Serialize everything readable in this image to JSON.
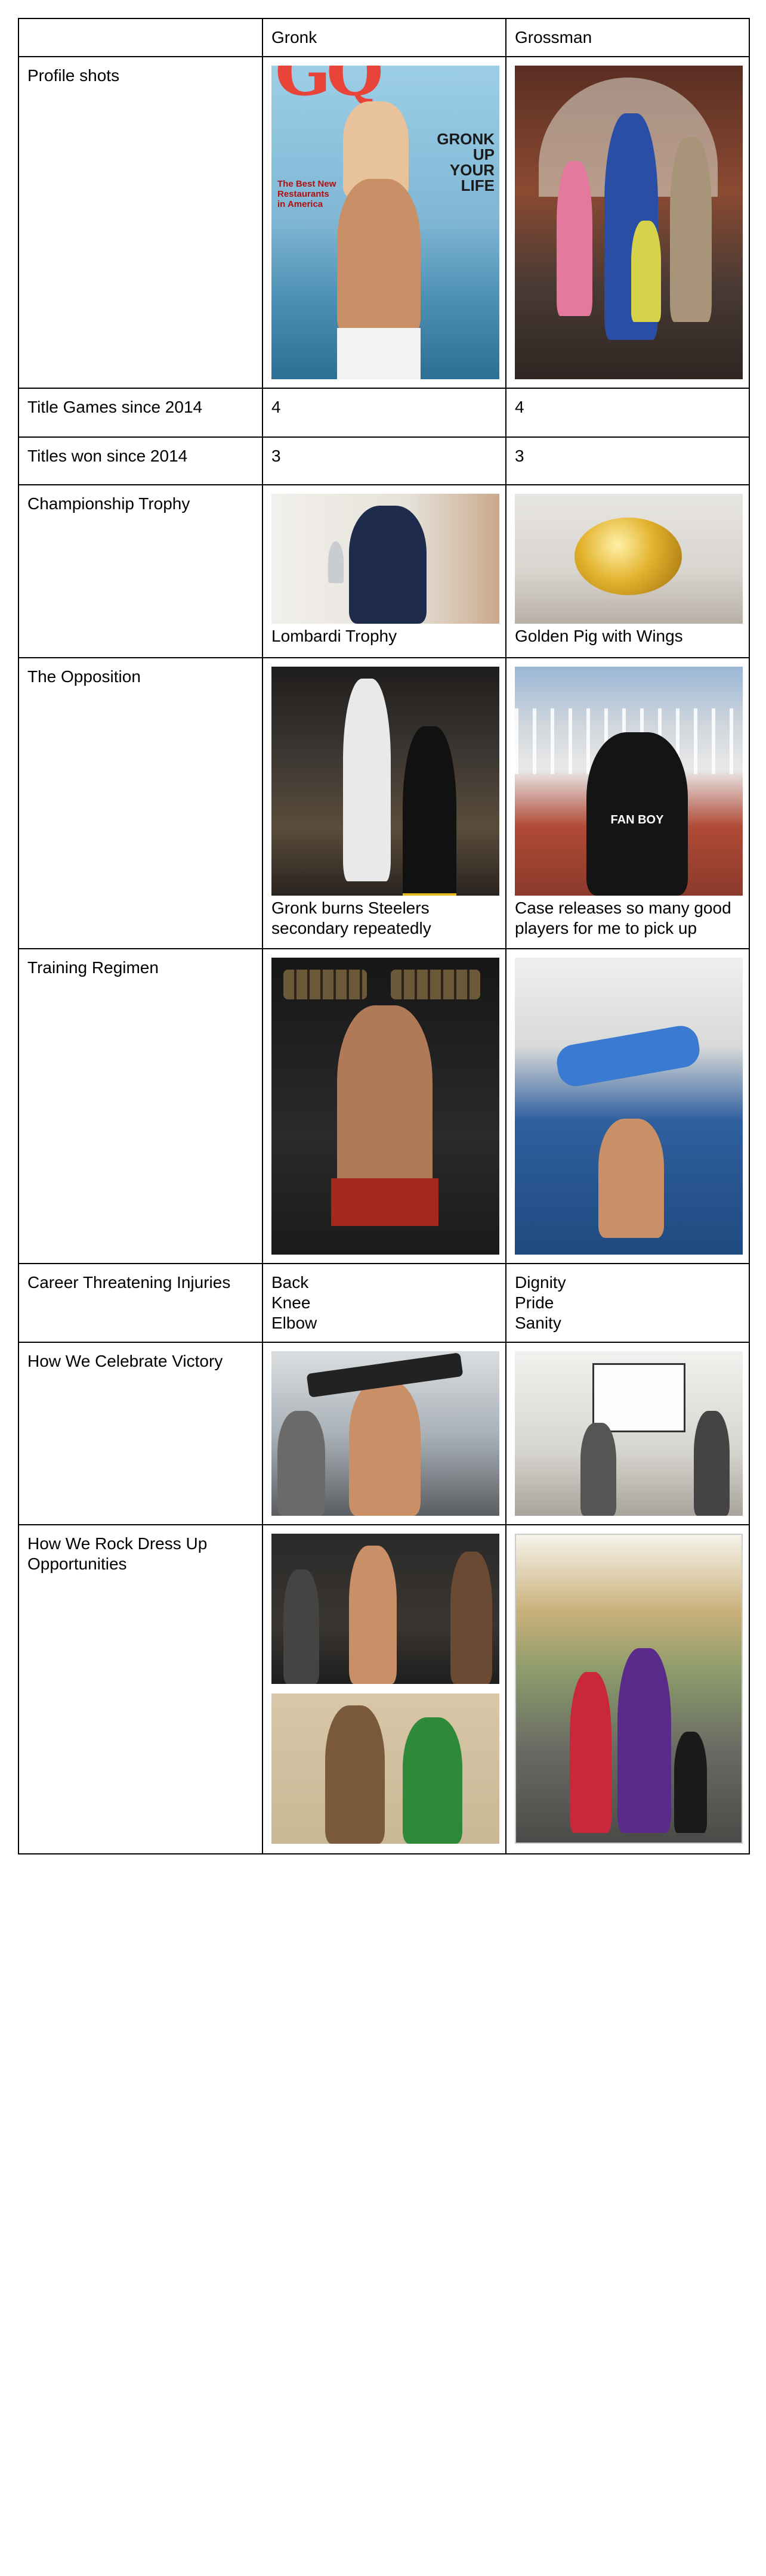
{
  "header": {
    "col1": "",
    "col2": "Gronk",
    "col3": "Grossman"
  },
  "rows": {
    "profile": {
      "label": "Profile shots",
      "gronk_mag": {
        "logo": "GQ",
        "headline": "GRONK UP YOUR LIFE",
        "side": "The Best New Restaurants in America"
      }
    },
    "title_games": {
      "label": "Title Games since 2014",
      "gronk": "4",
      "grossman": "4"
    },
    "titles_won": {
      "label": "Titles won since 2014",
      "gronk": "3",
      "grossman": "3"
    },
    "trophy": {
      "label": "Championship Trophy",
      "gronk_caption": "Lombardi Trophy",
      "grossman_caption": "Golden Pig with Wings"
    },
    "opposition": {
      "label": "The Opposition",
      "gronk_caption": "Gronk burns Steelers secondary repeatedly",
      "grossman_caption": "Case releases so many good players for me to pick up",
      "shirt_text": "FAN BOY"
    },
    "training": {
      "label": "Training Regimen"
    },
    "injuries": {
      "label": "Career Threatening Injuries",
      "gronk": [
        "Back",
        "Knee",
        "Elbow"
      ],
      "grossman": [
        "Dignity",
        "Pride",
        "Sanity"
      ]
    },
    "celebrate": {
      "label": "How We Celebrate Victory"
    },
    "dressup": {
      "label": "How We Rock Dress Up Opportunities"
    }
  },
  "colors": {
    "border": "#000000",
    "pool": "#2f5f9e",
    "gold": "#d4a21a",
    "magazine_sky": "#8ec5e0"
  }
}
